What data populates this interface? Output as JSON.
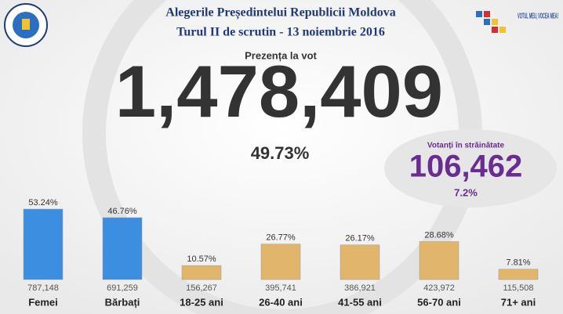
{
  "header": {
    "title": "Alegerile Președintelui Republicii Moldova",
    "subtitle": "Turul II de scrutin - 13 noiembrie 2016",
    "logo_text": "VOTUL MEU, VOCEA MEA!"
  },
  "turnout": {
    "label": "Prezența la vot",
    "voters": "1,478,409",
    "percent": "49.73%"
  },
  "abroad": {
    "label": "Votanți în străinătate",
    "voters": "106,462",
    "percent": "7.2%"
  },
  "chart_data": {
    "type": "bar",
    "categories": [
      "Femei",
      "Bărbați",
      "18-25 ani",
      "26-40 ani",
      "41-55 ani",
      "56-70 ani",
      "71+ ani"
    ],
    "values": [
      53.24,
      46.76,
      10.57,
      26.77,
      26.17,
      28.68,
      7.81
    ],
    "value_labels": [
      "53.24%",
      "46.76%",
      "10.57%",
      "26.77%",
      "26.17%",
      "28.68%",
      "7.81%"
    ],
    "counts": [
      "787,148",
      "691,259",
      "156,267",
      "395,741",
      "386,921",
      "423,972",
      "115,508"
    ],
    "colors": [
      "#3b8ee0",
      "#3b8ee0",
      "#e2b56c",
      "#e2b56c",
      "#e2b56c",
      "#e2b56c",
      "#e2b56c"
    ]
  }
}
